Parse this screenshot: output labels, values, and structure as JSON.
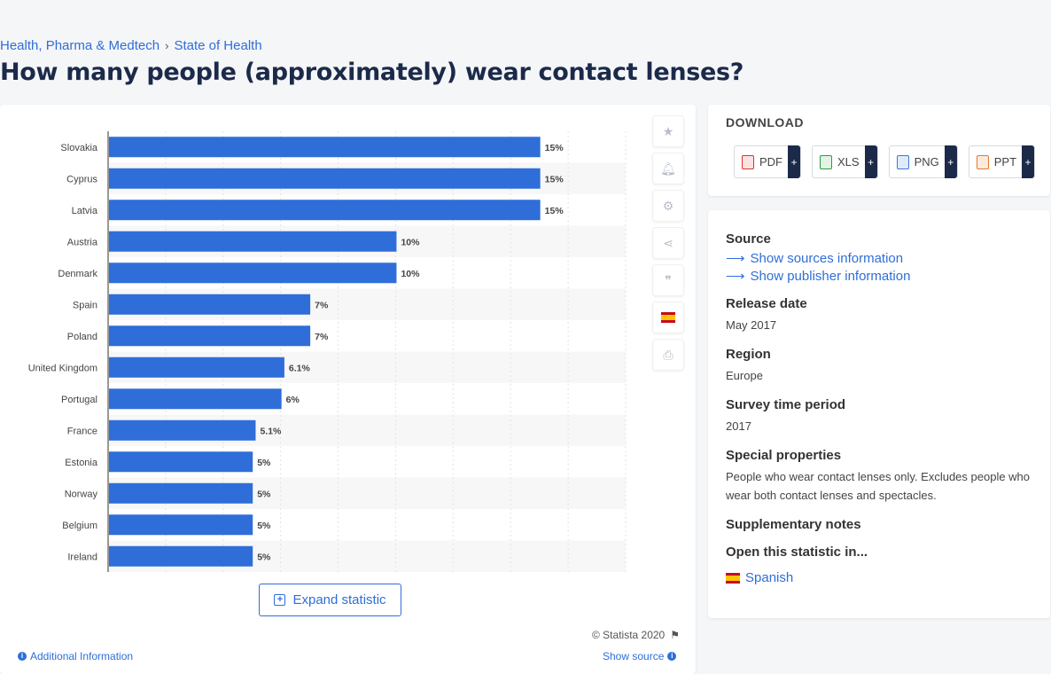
{
  "breadcrumb": {
    "items": [
      "Health, Pharma & Medtech",
      "State of Health"
    ],
    "separator": "›"
  },
  "page_title": "How many people (approximately) wear contact lenses?",
  "chart_data": {
    "type": "bar",
    "orientation": "horizontal",
    "categories": [
      "Slovakia",
      "Cyprus",
      "Latvia",
      "Austria",
      "Denmark",
      "Spain",
      "Poland",
      "United Kingdom",
      "Portugal",
      "France",
      "Estonia",
      "Norway",
      "Belgium",
      "Ireland"
    ],
    "values": [
      15,
      15,
      15,
      10,
      10,
      7,
      7,
      6.1,
      6,
      5.1,
      5,
      5,
      5,
      5
    ],
    "value_labels": [
      "15%",
      "15%",
      "15%",
      "10%",
      "10%",
      "7%",
      "7%",
      "6.1%",
      "6%",
      "5.1%",
      "5%",
      "5%",
      "5%",
      "5%"
    ],
    "xlim": [
      0,
      18
    ],
    "grid": true,
    "color": "#2f6ed8"
  },
  "tools": {
    "icons": [
      "star-icon",
      "bell-icon",
      "gear-icon",
      "share-icon",
      "quote-icon",
      "spain-flag-icon",
      "print-icon"
    ]
  },
  "expand_button": {
    "label": "Expand statistic"
  },
  "copyright": "© Statista 2020",
  "additional_info": "Additional Information",
  "show_source": "Show source",
  "download": {
    "title": "DOWNLOAD",
    "buttons": [
      {
        "label": "PDF",
        "plus": "+",
        "color": "#d9342b"
      },
      {
        "label": "XLS",
        "plus": "+",
        "color": "#2e9a44"
      },
      {
        "label": "PNG",
        "plus": "+",
        "color": "#3a7bd5"
      },
      {
        "label": "PPT",
        "plus": "+",
        "color": "#e8762c"
      }
    ]
  },
  "info": {
    "source_heading": "Source",
    "show_sources": "Show sources information",
    "show_publisher": "Show publisher information",
    "release_heading": "Release date",
    "release_value": "May 2017",
    "region_heading": "Region",
    "region_value": "Europe",
    "survey_heading": "Survey time period",
    "survey_value": "2017",
    "special_heading": "Special properties",
    "special_value": "People who wear contact lenses only. Excludes people who wear both contact lenses and spectacles.",
    "supplementary_heading": "Supplementary notes",
    "open_heading": "Open this statistic in...",
    "open_language": "Spanish"
  }
}
